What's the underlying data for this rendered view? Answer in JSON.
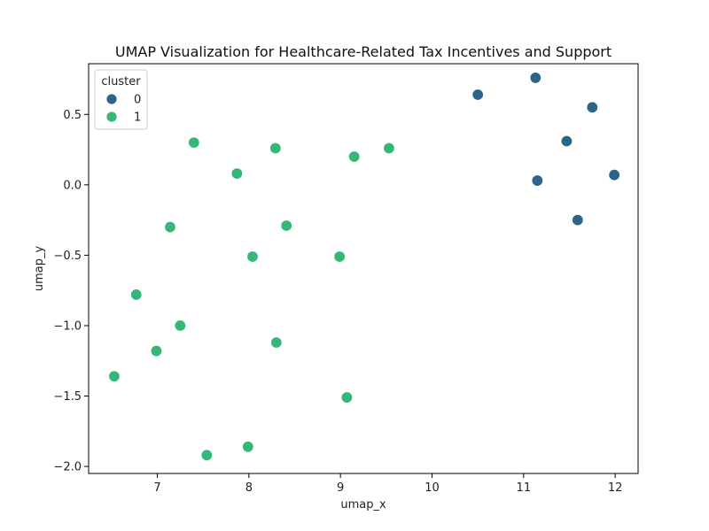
{
  "chart_data": {
    "type": "scatter",
    "title": "UMAP Visualization for Healthcare-Related Tax Incentives and Support",
    "xlabel": "umap_x",
    "ylabel": "umap_y",
    "xlim": [
      6.25,
      12.25
    ],
    "ylim": [
      -2.05,
      0.86
    ],
    "xticks": [
      7,
      8,
      9,
      10,
      11,
      12
    ],
    "yticks": [
      -2.0,
      -1.5,
      -1.0,
      -0.5,
      0.0,
      0.5
    ],
    "xtick_labels": [
      "7",
      "8",
      "9",
      "10",
      "11",
      "12"
    ],
    "ytick_labels": [
      "−2.0",
      "−1.5",
      "−1.0",
      "−0.5",
      "0.0",
      "0.5"
    ],
    "grid": false,
    "legend": {
      "title": "cluster",
      "placement": "top-left",
      "entries": [
        {
          "label": "0",
          "color": "#2e6487"
        },
        {
          "label": "1",
          "color": "#35b779"
        }
      ]
    },
    "series": [
      {
        "name": "0",
        "color": "#2e6487",
        "points": [
          {
            "x": 10.5,
            "y": 0.64
          },
          {
            "x": 11.13,
            "y": 0.76
          },
          {
            "x": 11.75,
            "y": 0.55
          },
          {
            "x": 11.47,
            "y": 0.31
          },
          {
            "x": 11.15,
            "y": 0.03
          },
          {
            "x": 11.99,
            "y": 0.07
          },
          {
            "x": 11.59,
            "y": -0.25
          }
        ]
      },
      {
        "name": "1",
        "color": "#35b779",
        "points": [
          {
            "x": 7.4,
            "y": 0.3
          },
          {
            "x": 8.29,
            "y": 0.26
          },
          {
            "x": 9.53,
            "y": 0.26
          },
          {
            "x": 9.15,
            "y": 0.2
          },
          {
            "x": 7.87,
            "y": 0.08
          },
          {
            "x": 7.14,
            "y": -0.3
          },
          {
            "x": 8.41,
            "y": -0.29
          },
          {
            "x": 8.04,
            "y": -0.51
          },
          {
            "x": 8.99,
            "y": -0.51
          },
          {
            "x": 6.77,
            "y": -0.78
          },
          {
            "x": 7.25,
            "y": -1.0
          },
          {
            "x": 8.3,
            "y": -1.12
          },
          {
            "x": 6.99,
            "y": -1.18
          },
          {
            "x": 6.53,
            "y": -1.36
          },
          {
            "x": 9.07,
            "y": -1.51
          },
          {
            "x": 7.99,
            "y": -1.86
          },
          {
            "x": 7.54,
            "y": -1.92
          }
        ]
      }
    ]
  }
}
